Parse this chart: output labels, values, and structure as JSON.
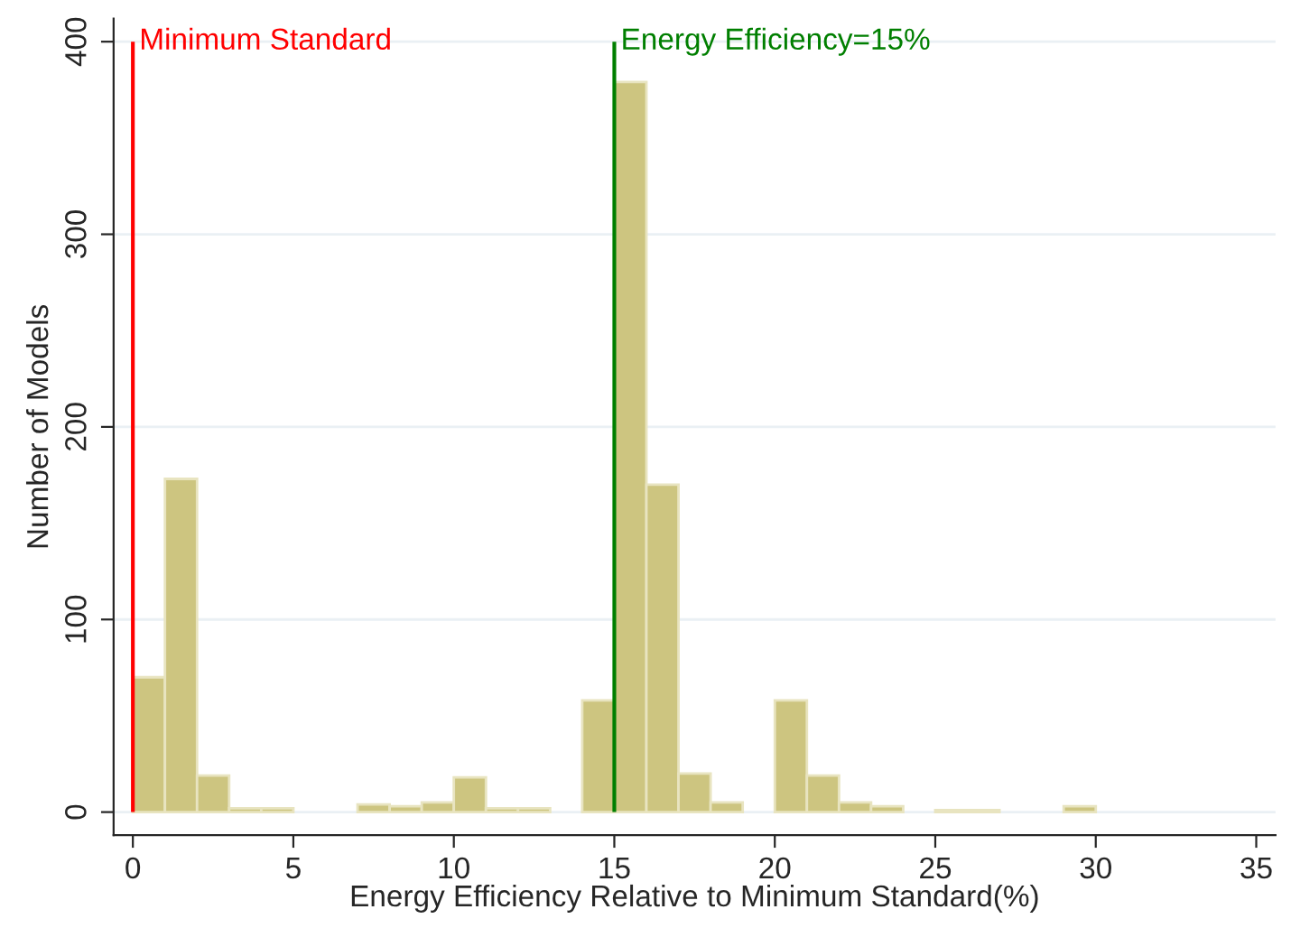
{
  "chart_data": {
    "type": "histogram",
    "xlabel": "Energy Efficiency Relative to Minimum Standard(%)",
    "ylabel": "Number of Models",
    "bins": [
      0,
      1,
      2,
      3,
      4,
      5,
      6,
      7,
      8,
      9,
      10,
      11,
      12,
      13,
      14,
      15,
      16,
      17,
      18,
      19,
      20,
      21,
      22,
      23,
      24,
      25,
      26,
      27,
      28,
      29,
      30
    ],
    "values": [
      70,
      173,
      19,
      2,
      2,
      0,
      0,
      4,
      3,
      5,
      18,
      2,
      2,
      0,
      58,
      379,
      170,
      20,
      5,
      0,
      58,
      19,
      5,
      3,
      0,
      1,
      1,
      0,
      0,
      3
    ],
    "color": "#cdc580",
    "xlim": [
      -0.6,
      35.6
    ],
    "xticks": [
      0,
      5,
      10,
      15,
      20,
      25,
      30,
      35
    ],
    "ylim": [
      -12,
      412
    ],
    "yticks": [
      0,
      100,
      200,
      300,
      400
    ],
    "grid": "y",
    "ref_lines": [
      {
        "axis": "x",
        "value": 0,
        "label": "Minimum Standard",
        "color": "#ff0000"
      },
      {
        "axis": "x",
        "value": 15,
        "label": "Energy Efficiency=15%",
        "color": "#007f00"
      }
    ]
  }
}
